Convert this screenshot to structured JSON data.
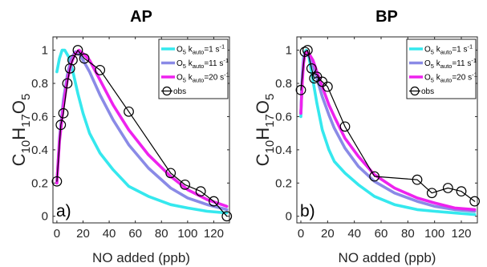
{
  "chart_data": [
    {
      "type": "line",
      "title": "AP",
      "panel_label": "a)",
      "xlabel": "NO added (ppb)",
      "ylabel_parts": [
        {
          "t": "C"
        },
        {
          "t": "10",
          "sub": true
        },
        {
          "t": "H"
        },
        {
          "t": "17",
          "sub": true
        },
        {
          "t": "O"
        },
        {
          "t": "5",
          "sub": true
        }
      ],
      "xlim": [
        -3,
        132
      ],
      "ylim": [
        -0.04,
        1.08
      ],
      "xticks": [
        0,
        20,
        40,
        60,
        80,
        100,
        120
      ],
      "yticks": [
        0,
        0.2,
        0.4,
        0.6,
        0.8,
        1
      ],
      "ytick_labels": [
        "0",
        "0.2",
        "0.4",
        "0.6",
        "0.8",
        "1"
      ],
      "grid": false,
      "legend_position": "top-right",
      "series": [
        {
          "legend_parts": [
            {
              "t": "O"
            },
            {
              "t": "5",
              "sub": true
            },
            {
              "t": " k"
            },
            {
              "t": "auto",
              "sub": true
            },
            {
              "t": "=1 s"
            },
            {
              "t": "-1",
              "sup": true
            }
          ],
          "color": "#35e8ee",
          "style": "line",
          "x": [
            0,
            2,
            4,
            6,
            9,
            12,
            16,
            20,
            25,
            33,
            43,
            55,
            70,
            87,
            100,
            115,
            130
          ],
          "y": [
            0.87,
            0.95,
            1.0,
            1.0,
            0.96,
            0.88,
            0.74,
            0.62,
            0.5,
            0.38,
            0.28,
            0.18,
            0.12,
            0.07,
            0.05,
            0.03,
            0.02
          ]
        },
        {
          "legend_parts": [
            {
              "t": "O"
            },
            {
              "t": "5",
              "sub": true
            },
            {
              "t": " k"
            },
            {
              "t": "auto",
              "sub": true
            },
            {
              "t": "=11 s"
            },
            {
              "t": "-1",
              "sup": true
            }
          ],
          "color": "#8a8ae6",
          "style": "line",
          "x": [
            0,
            2,
            5,
            8,
            11,
            14,
            17,
            20,
            25,
            33,
            43,
            55,
            70,
            87,
            100,
            115,
            130
          ],
          "y": [
            0.2,
            0.47,
            0.7,
            0.85,
            0.95,
            0.99,
            0.98,
            0.94,
            0.87,
            0.73,
            0.58,
            0.43,
            0.29,
            0.17,
            0.11,
            0.07,
            0.04
          ]
        },
        {
          "legend_parts": [
            {
              "t": "O"
            },
            {
              "t": "5",
              "sub": true
            },
            {
              "t": " k"
            },
            {
              "t": "auto",
              "sub": true
            },
            {
              "t": "=20 s"
            },
            {
              "t": "-1",
              "sup": true
            }
          ],
          "color": "#ee22ee",
          "style": "line",
          "x": [
            0,
            2,
            5,
            8,
            11,
            14,
            17,
            20,
            25,
            33,
            43,
            55,
            70,
            87,
            100,
            115,
            130
          ],
          "y": [
            0.2,
            0.45,
            0.66,
            0.82,
            0.92,
            0.98,
            1.0,
            0.98,
            0.94,
            0.82,
            0.67,
            0.52,
            0.37,
            0.24,
            0.16,
            0.1,
            0.06
          ]
        },
        {
          "legend_parts": [
            {
              "t": "obs"
            }
          ],
          "color": "#000000",
          "style": "line-marker",
          "x": [
            0,
            3,
            5,
            8,
            10,
            12,
            16,
            21,
            33,
            55,
            87,
            98,
            110,
            120,
            130
          ],
          "y": [
            0.21,
            0.55,
            0.62,
            0.8,
            0.89,
            0.94,
            1.0,
            0.95,
            0.88,
            0.63,
            0.26,
            0.19,
            0.15,
            0.09,
            0.0
          ]
        }
      ]
    },
    {
      "type": "line",
      "title": "BP",
      "panel_label": "b)",
      "xlabel": "NO added (ppb)",
      "ylabel_parts": [
        {
          "t": "C"
        },
        {
          "t": "10",
          "sub": true
        },
        {
          "t": "H"
        },
        {
          "t": "17",
          "sub": true
        },
        {
          "t": "O"
        },
        {
          "t": "5",
          "sub": true
        }
      ],
      "xlim": [
        -3,
        132
      ],
      "ylim": [
        -0.04,
        1.08
      ],
      "xticks": [
        0,
        20,
        40,
        60,
        80,
        100,
        120
      ],
      "yticks": [
        0,
        0.2,
        0.4,
        0.6,
        0.8,
        1
      ],
      "ytick_labels": [
        "0",
        "0.2",
        "0.4",
        "0.6",
        "0.8",
        "1"
      ],
      "grid": false,
      "legend_position": "top-right",
      "series": [
        {
          "legend_parts": [
            {
              "t": "O"
            },
            {
              "t": "5",
              "sub": true
            },
            {
              "t": " k"
            },
            {
              "t": "auto",
              "sub": true
            },
            {
              "t": "=1 s"
            },
            {
              "t": "-1",
              "sup": true
            }
          ],
          "color": "#35e8ee",
          "style": "line",
          "x": [
            0,
            1,
            2,
            3,
            4,
            6,
            9,
            12,
            16,
            21,
            25,
            33,
            43,
            55,
            70,
            87,
            100,
            115,
            130
          ],
          "y": [
            0.6,
            0.85,
            0.95,
            0.99,
            1.0,
            0.96,
            0.82,
            0.68,
            0.52,
            0.4,
            0.33,
            0.26,
            0.19,
            0.12,
            0.07,
            0.04,
            0.03,
            0.02,
            0.01
          ]
        },
        {
          "legend_parts": [
            {
              "t": "O"
            },
            {
              "t": "5",
              "sub": true
            },
            {
              "t": " k"
            },
            {
              "t": "auto",
              "sub": true
            },
            {
              "t": "=11 s"
            },
            {
              "t": "-1",
              "sup": true
            }
          ],
          "color": "#8a8ae6",
          "style": "line",
          "x": [
            0,
            1,
            2,
            3,
            4,
            6,
            9,
            12,
            16,
            21,
            25,
            33,
            43,
            55,
            70,
            87,
            100,
            115,
            130
          ],
          "y": [
            0.62,
            0.82,
            0.93,
            0.98,
            0.99,
            0.97,
            0.91,
            0.83,
            0.72,
            0.61,
            0.53,
            0.41,
            0.3,
            0.21,
            0.14,
            0.09,
            0.06,
            0.04,
            0.03
          ]
        },
        {
          "legend_parts": [
            {
              "t": "O"
            },
            {
              "t": "5",
              "sub": true
            },
            {
              "t": " k"
            },
            {
              "t": "auto",
              "sub": true
            },
            {
              "t": "=20 s"
            },
            {
              "t": "-1",
              "sup": true
            }
          ],
          "color": "#ee22ee",
          "style": "line",
          "x": [
            0,
            1,
            2,
            3,
            4,
            6,
            9,
            12,
            16,
            21,
            25,
            33,
            43,
            55,
            70,
            87,
            100,
            115,
            130
          ],
          "y": [
            0.62,
            0.8,
            0.92,
            0.97,
            0.99,
            0.98,
            0.94,
            0.87,
            0.78,
            0.67,
            0.6,
            0.47,
            0.36,
            0.25,
            0.17,
            0.11,
            0.08,
            0.05,
            0.04
          ]
        },
        {
          "legend_parts": [
            {
              "t": "obs"
            }
          ],
          "color": "#000000",
          "style": "line-marker",
          "x": [
            0,
            3,
            5,
            8,
            10,
            12,
            16,
            20,
            33,
            55,
            87,
            98,
            110,
            120,
            130
          ],
          "y": [
            0.76,
            0.99,
            1.0,
            0.89,
            0.83,
            0.84,
            0.81,
            0.78,
            0.54,
            0.24,
            0.22,
            0.14,
            0.17,
            0.15,
            0.09
          ]
        }
      ]
    }
  ]
}
